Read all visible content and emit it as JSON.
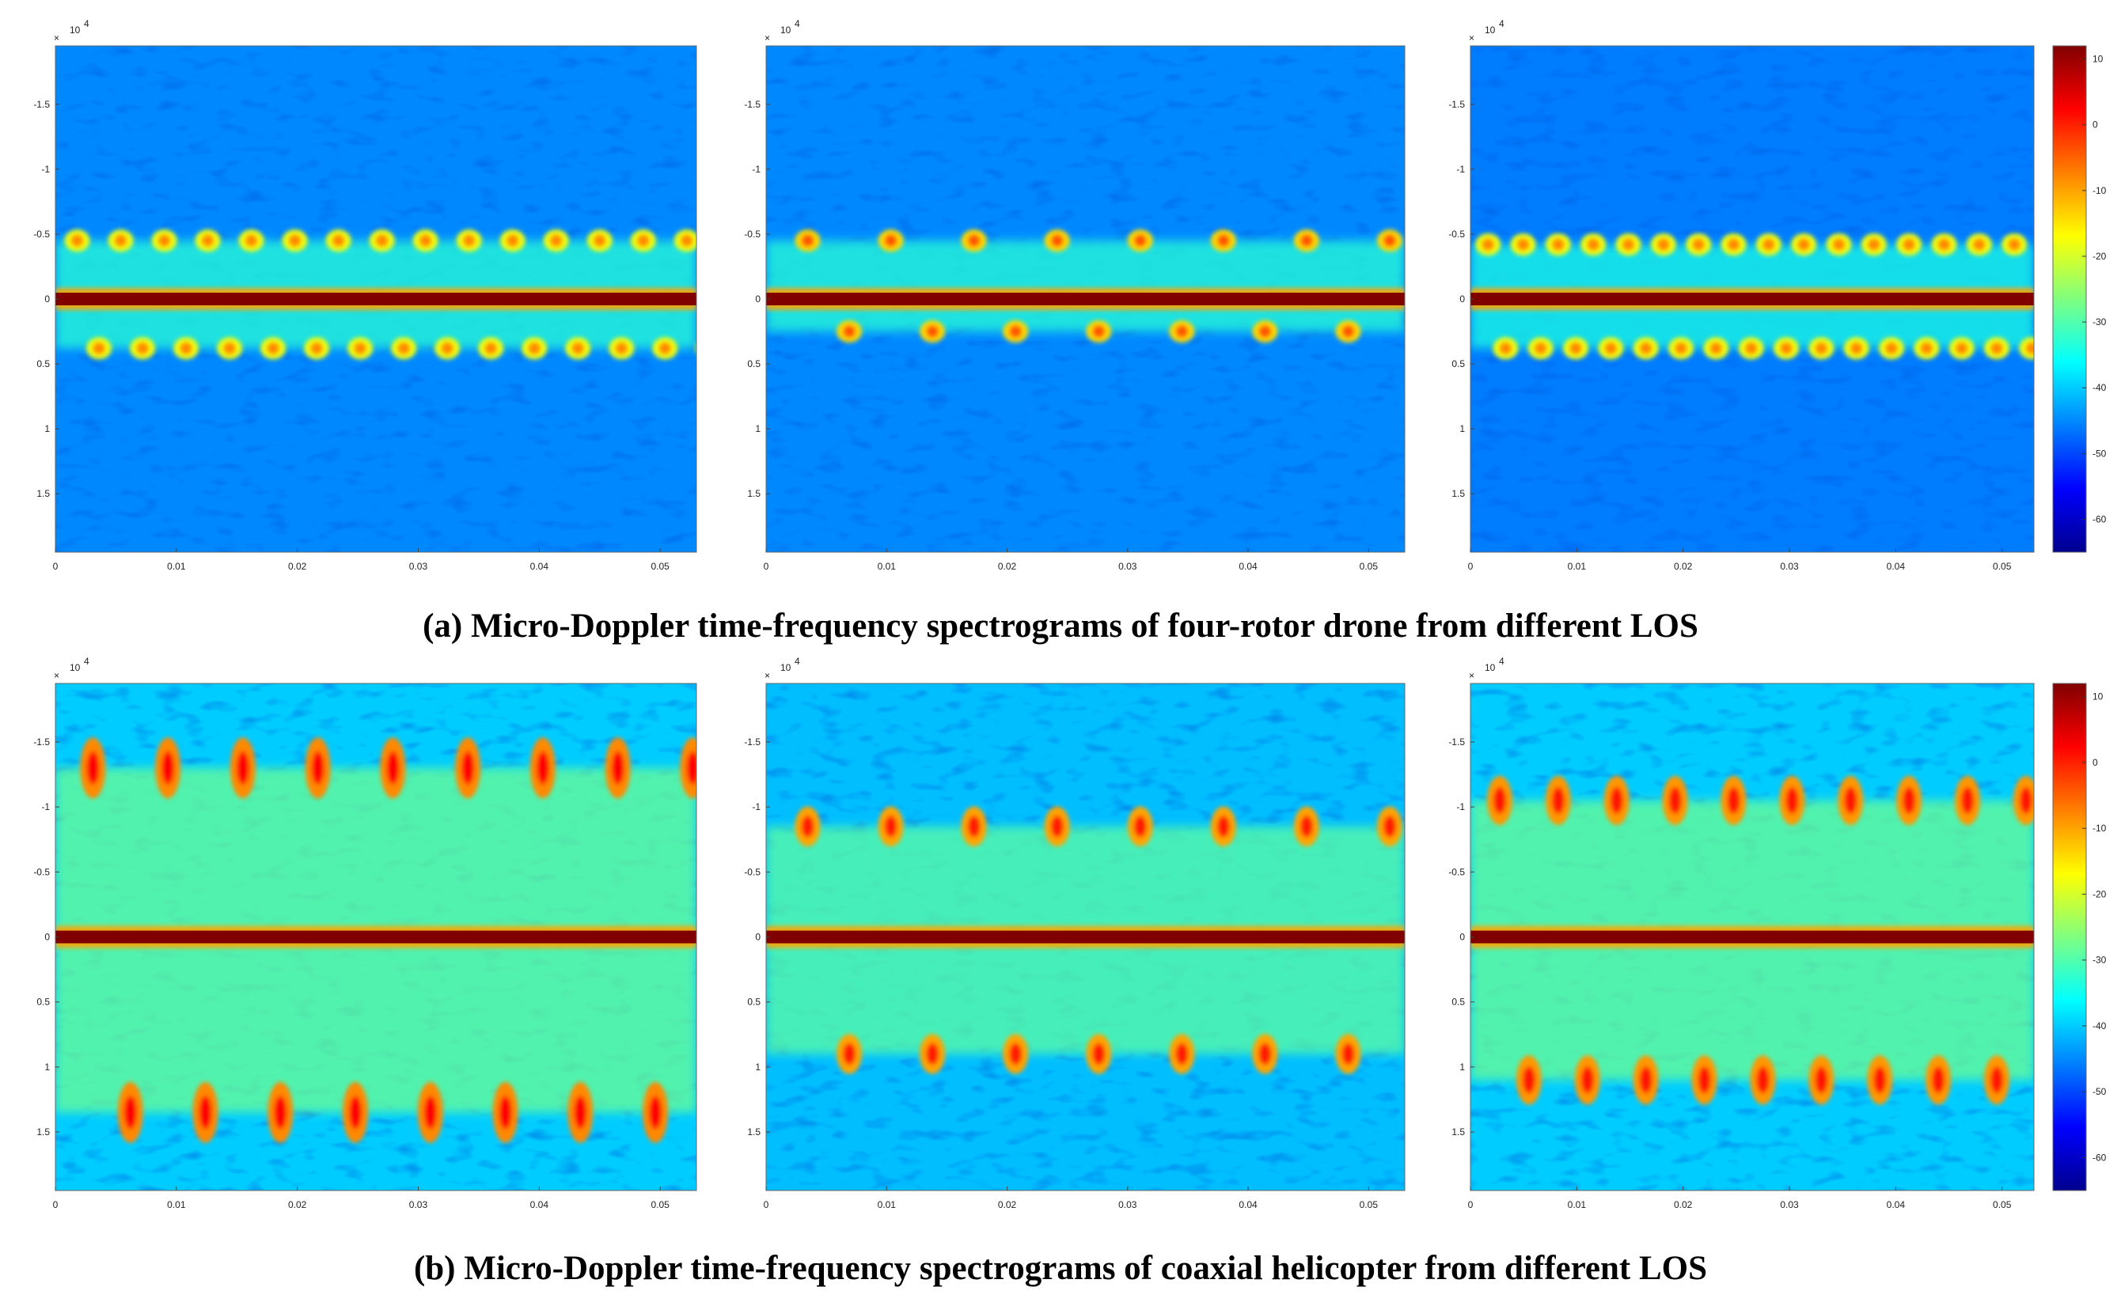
{
  "captions": {
    "a": "(a) Micro-Doppler time-frequency spectrograms of four-rotor drone from different LOS",
    "b": "(b) Micro-Doppler time-frequency spectrograms of coaxial helicopter from different LOS"
  },
  "axis": {
    "exponent_x": "×",
    "exponent_base": "10",
    "exponent_power": "4",
    "y_ticks": [
      "-1.5",
      "-1",
      "-0.5",
      "0",
      "0.5",
      "1",
      "1.5"
    ],
    "y_tick_values": [
      -15000,
      -10000,
      -5000,
      0,
      5000,
      10000,
      15000
    ],
    "y_range": [
      -19500,
      19500
    ],
    "x_ticks": [
      "0",
      "0.01",
      "0.02",
      "0.03",
      "0.04",
      "0.05"
    ],
    "x_tick_values": [
      0,
      0.01,
      0.02,
      0.03,
      0.04,
      0.05
    ],
    "x_range": [
      0,
      0.053
    ]
  },
  "colorbar": {
    "ticks": [
      "10",
      "0",
      "-10",
      "-20",
      "-30",
      "-40",
      "-50",
      "-60"
    ],
    "tick_values": [
      10,
      0,
      -10,
      -20,
      -30,
      -40,
      -50,
      -60
    ],
    "range": [
      -65,
      12
    ],
    "colormap": "jet"
  },
  "chart_data": [
    {
      "type": "heatmap",
      "row": "a",
      "panel": 1,
      "target": "four-rotor drone",
      "xlabel": "",
      "ylabel": "",
      "x_range": [
        0,
        0.053
      ],
      "y_range": [
        -19500,
        19500
      ],
      "body_line_freq": 0,
      "flash_period_s": 0.0036,
      "flash_freqs": [
        -4500,
        3800
      ],
      "flash_level_db": -18,
      "noise_level_db": -45
    },
    {
      "type": "heatmap",
      "row": "a",
      "panel": 2,
      "target": "four-rotor drone",
      "xlabel": "",
      "ylabel": "",
      "x_range": [
        0,
        0.053
      ],
      "y_range": [
        -19500,
        19500
      ],
      "body_line_freq": 0,
      "flash_period_s": 0.0069,
      "flash_freqs": [
        -4500,
        2500
      ],
      "flash_level_db": -14,
      "noise_level_db": -45
    },
    {
      "type": "heatmap",
      "row": "a",
      "panel": 3,
      "target": "four-rotor drone",
      "xlabel": "",
      "ylabel": "",
      "x_range": [
        0,
        0.053
      ],
      "y_range": [
        -19500,
        19500
      ],
      "body_line_freq": 0,
      "flash_period_s": 0.0033,
      "flash_freqs": [
        -4200,
        3800
      ],
      "flash_level_db": -18,
      "noise_level_db": -46
    },
    {
      "type": "heatmap",
      "row": "b",
      "panel": 1,
      "target": "coaxial helicopter",
      "xlabel": "",
      "ylabel": "",
      "x_range": [
        0,
        0.053
      ],
      "y_range": [
        -19500,
        19500
      ],
      "body_line_freq": 0,
      "flash_period_s": 0.0062,
      "flash_freqs": [
        -13000,
        13500
      ],
      "flash_level_db": -8,
      "noise_level_db": -40
    },
    {
      "type": "heatmap",
      "row": "b",
      "panel": 2,
      "target": "coaxial helicopter",
      "xlabel": "",
      "ylabel": "",
      "x_range": [
        0,
        0.053
      ],
      "y_range": [
        -19500,
        19500
      ],
      "body_line_freq": 0,
      "flash_period_s": 0.0069,
      "flash_freqs": [
        -8500,
        9000
      ],
      "flash_level_db": -10,
      "noise_level_db": -41
    },
    {
      "type": "heatmap",
      "row": "b",
      "panel": 3,
      "target": "coaxial helicopter",
      "xlabel": "",
      "ylabel": "",
      "x_range": [
        0,
        0.053
      ],
      "y_range": [
        -19500,
        19500
      ],
      "body_line_freq": 0,
      "flash_period_s": 0.0055,
      "flash_freqs": [
        -10500,
        11000
      ],
      "flash_level_db": -9,
      "noise_level_db": -40
    }
  ]
}
